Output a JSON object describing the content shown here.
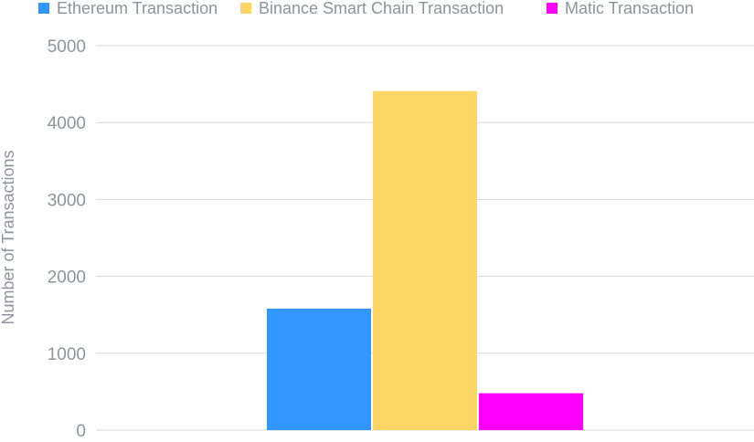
{
  "chart_data": {
    "type": "bar",
    "title": "",
    "xlabel": "",
    "ylabel": "Number of Transactions",
    "categories": [
      ""
    ],
    "series": [
      {
        "name": "Ethereum Transaction",
        "values": [
          1580
        ],
        "color": "#3196ff"
      },
      {
        "name": "Binance Smart Chain Transaction",
        "values": [
          4410
        ],
        "color": "#ffd666"
      },
      {
        "name": "Matic Transaction",
        "values": [
          480
        ],
        "color": "#ff00ff"
      }
    ],
    "ylim": [
      0,
      5000
    ],
    "yticks": [
      0,
      1000,
      2000,
      3000,
      4000,
      5000
    ],
    "grid": true,
    "legend_position": "top"
  }
}
